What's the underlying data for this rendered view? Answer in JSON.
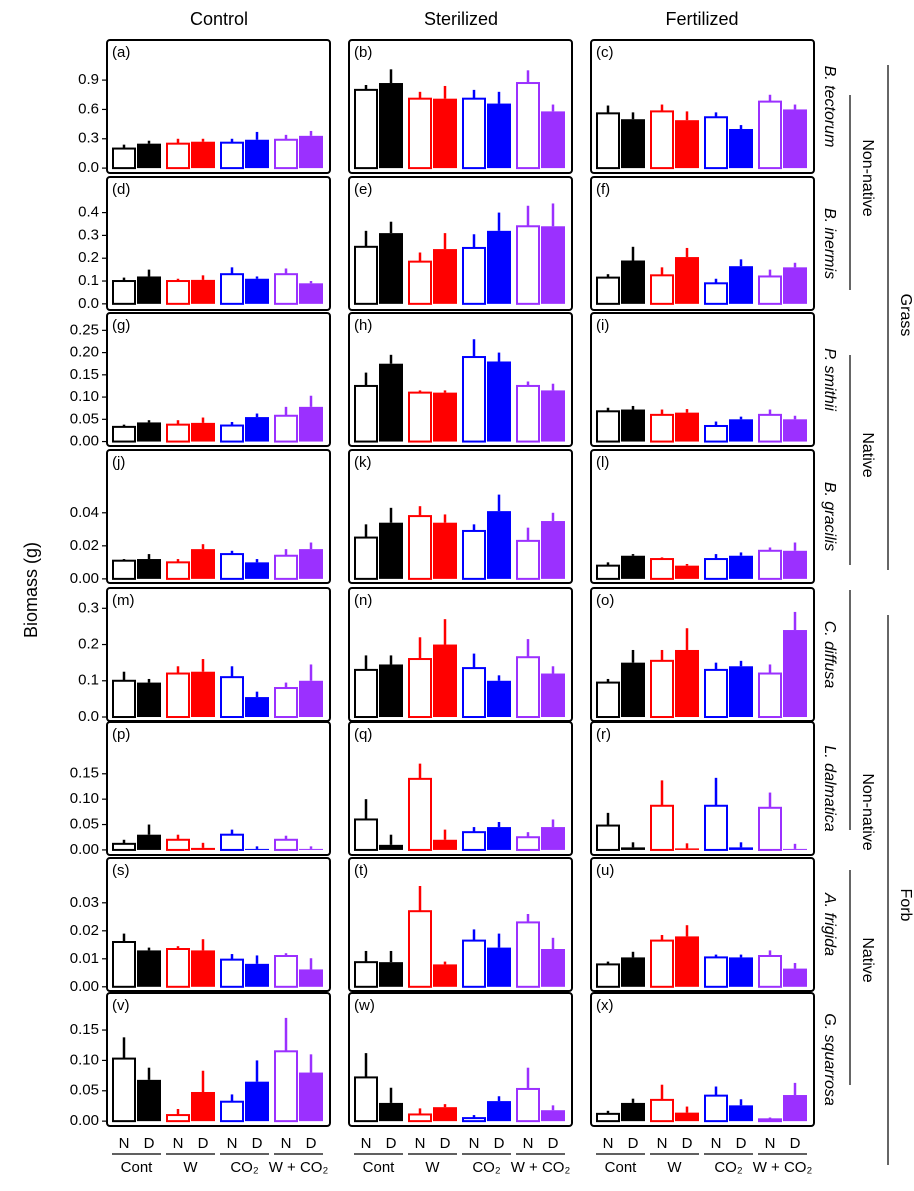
{
  "y_label": "Biomass (g)",
  "columns": [
    "Control",
    "Sterilized",
    "Fertilized"
  ],
  "levels": [
    "N",
    "D"
  ],
  "treatments": [
    {
      "name": "Cont",
      "color": "#000000"
    },
    {
      "name": "W",
      "color": "#ff0000"
    },
    {
      "name": "CO₂",
      "color": "#0000ff"
    },
    {
      "name": "W + CO₂",
      "color": "#9b30ff"
    }
  ],
  "groups": [
    {
      "label": "Grass",
      "subgroups": [
        {
          "label": "Non-native"
        },
        {
          "label": "Native"
        }
      ]
    },
    {
      "label": "Forb",
      "subgroups": [
        {
          "label": "Non-native"
        },
        {
          "label": "Native"
        }
      ]
    }
  ],
  "chart_data": [
    {
      "type": "bar",
      "label": "(a)",
      "ylim": [
        -0.05,
        1.31
      ],
      "yticks": [
        {
          "value": 0,
          "label": "0.0"
        },
        0.3,
        0.6,
        0.9
      ],
      "values": [
        0.2,
        0.25,
        0.25,
        0.27,
        0.26,
        0.29,
        0.29,
        0.33
      ],
      "errors": [
        0.04,
        0.03,
        0.05,
        0.03,
        0.04,
        0.08,
        0.05,
        0.05
      ]
    },
    {
      "type": "bar",
      "label": "(b)",
      "ylim": [
        -0.05,
        1.31
      ],
      "values": [
        0.8,
        0.87,
        0.71,
        0.71,
        0.71,
        0.66,
        0.87,
        0.58
      ],
      "errors": [
        0.05,
        0.14,
        0.07,
        0.13,
        0.09,
        0.12,
        0.13,
        0.07
      ]
    },
    {
      "type": "bar",
      "label": "(c)",
      "ylim": [
        -0.05,
        1.31
      ],
      "species": "B. tectorum",
      "values": [
        0.56,
        0.5,
        0.58,
        0.49,
        0.52,
        0.4,
        0.68,
        0.6
      ],
      "errors": [
        0.08,
        0.07,
        0.07,
        0.09,
        0.05,
        0.04,
        0.07,
        0.05
      ]
    },
    {
      "type": "bar",
      "label": "(d)",
      "ylim": [
        -0.027,
        0.556
      ],
      "yticks": [
        {
          "value": 0,
          "label": "0.0"
        },
        0.1,
        0.2,
        0.3,
        0.4
      ],
      "values": [
        0.1,
        0.12,
        0.1,
        0.105,
        0.13,
        0.11,
        0.13,
        0.09
      ],
      "errors": [
        0.015,
        0.03,
        0.01,
        0.02,
        0.03,
        0.01,
        0.025,
        0.01
      ]
    },
    {
      "type": "bar",
      "label": "(e)",
      "ylim": [
        -0.027,
        0.556
      ],
      "values": [
        0.25,
        0.31,
        0.185,
        0.24,
        0.245,
        0.32,
        0.34,
        0.34
      ],
      "errors": [
        0.07,
        0.05,
        0.04,
        0.07,
        0.06,
        0.08,
        0.09,
        0.1
      ]
    },
    {
      "type": "bar",
      "label": "(f)",
      "ylim": [
        -0.027,
        0.556
      ],
      "species": "B. inermis",
      "values": [
        0.115,
        0.19,
        0.125,
        0.205,
        0.09,
        0.165,
        0.12,
        0.16
      ],
      "errors": [
        0.015,
        0.06,
        0.035,
        0.04,
        0.02,
        0.03,
        0.03,
        0.02
      ]
    },
    {
      "type": "bar",
      "label": "(g)",
      "ylim": [
        -0.01,
        0.289
      ],
      "yticks": [
        {
          "value": 0,
          "label": "0.00"
        },
        0.05,
        {
          "value": 0.1,
          "label": "0.10"
        },
        0.15,
        {
          "value": 0.2,
          "label": "0.20"
        },
        0.25
      ],
      "values": [
        0.033,
        0.043,
        0.038,
        0.042,
        0.036,
        0.055,
        0.058,
        0.078
      ],
      "errors": [
        0.005,
        0.005,
        0.01,
        0.012,
        0.008,
        0.008,
        0.02,
        0.025
      ]
    },
    {
      "type": "bar",
      "label": "(h)",
      "ylim": [
        -0.01,
        0.289
      ],
      "values": [
        0.125,
        0.175,
        0.11,
        0.11,
        0.19,
        0.18,
        0.125,
        0.115
      ],
      "errors": [
        0.03,
        0.02,
        0.005,
        0.005,
        0.04,
        0.02,
        0.01,
        0.015
      ]
    },
    {
      "type": "bar",
      "label": "(i)",
      "ylim": [
        -0.01,
        0.289
      ],
      "species": "P. smithii",
      "values": [
        0.068,
        0.072,
        0.06,
        0.065,
        0.035,
        0.05,
        0.06,
        0.05
      ],
      "errors": [
        0.008,
        0.008,
        0.012,
        0.008,
        0.01,
        0.006,
        0.012,
        0.008
      ]
    },
    {
      "type": "bar",
      "label": "(j)",
      "ylim": [
        -0.0025,
        0.078
      ],
      "yticks": [
        {
          "value": 0,
          "label": "0.00"
        },
        0.02,
        0.04
      ],
      "values": [
        0.011,
        0.012,
        0.01,
        0.018,
        0.015,
        0.01,
        0.014,
        0.018
      ],
      "errors": [
        0.001,
        0.003,
        0.002,
        0.003,
        0.002,
        0.002,
        0.004,
        0.004
      ]
    },
    {
      "type": "bar",
      "label": "(k)",
      "ylim": [
        -0.0025,
        0.078
      ],
      "values": [
        0.025,
        0.034,
        0.038,
        0.034,
        0.029,
        0.041,
        0.023,
        0.035
      ],
      "errors": [
        0.008,
        0.009,
        0.006,
        0.005,
        0.004,
        0.01,
        0.008,
        0.005
      ]
    },
    {
      "type": "bar",
      "label": "(l)",
      "ylim": [
        -0.0025,
        0.078
      ],
      "species": "B. gracilis",
      "values": [
        0.008,
        0.014,
        0.012,
        0.008,
        0.012,
        0.014,
        0.017,
        0.017
      ],
      "errors": [
        0.002,
        0.001,
        0.001,
        0.001,
        0.003,
        0.002,
        0.002,
        0.005
      ]
    },
    {
      "type": "bar",
      "label": "(m)",
      "ylim": [
        -0.011,
        0.356
      ],
      "yticks": [
        {
          "value": 0,
          "label": "0.0"
        },
        0.1,
        0.2,
        0.3
      ],
      "values": [
        0.1,
        0.095,
        0.12,
        0.125,
        0.11,
        0.055,
        0.08,
        0.1
      ],
      "errors": [
        0.025,
        0.01,
        0.02,
        0.035,
        0.03,
        0.015,
        0.015,
        0.045
      ]
    },
    {
      "type": "bar",
      "label": "(n)",
      "ylim": [
        -0.011,
        0.356
      ],
      "values": [
        0.13,
        0.145,
        0.16,
        0.2,
        0.135,
        0.1,
        0.165,
        0.12
      ],
      "errors": [
        0.04,
        0.025,
        0.06,
        0.07,
        0.04,
        0.015,
        0.05,
        0.02
      ]
    },
    {
      "type": "bar",
      "label": "(o)",
      "ylim": [
        -0.011,
        0.356
      ],
      "species": "C. diffusa",
      "values": [
        0.095,
        0.15,
        0.155,
        0.185,
        0.13,
        0.14,
        0.12,
        0.24
      ],
      "errors": [
        0.01,
        0.035,
        0.03,
        0.06,
        0.02,
        0.015,
        0.025,
        0.05
      ]
    },
    {
      "type": "bar",
      "label": "(p)",
      "ylim": [
        -0.01,
        0.252
      ],
      "yticks": [
        {
          "value": 0,
          "label": "0.00"
        },
        0.05,
        {
          "value": 0.1,
          "label": "0.10"
        },
        0.15
      ],
      "values": [
        0.012,
        0.03,
        0.02,
        0.004,
        0.03,
        0.002,
        0.02,
        0.002
      ],
      "errors": [
        0.008,
        0.02,
        0.01,
        0.01,
        0.01,
        0.005,
        0.008,
        0.005
      ]
    },
    {
      "type": "bar",
      "label": "(q)",
      "ylim": [
        -0.01,
        0.252
      ],
      "values": [
        0.06,
        0.01,
        0.14,
        0.02,
        0.035,
        0.045,
        0.025,
        0.045
      ],
      "errors": [
        0.04,
        0.02,
        0.03,
        0.02,
        0.01,
        0.01,
        0.01,
        0.015
      ]
    },
    {
      "type": "bar",
      "label": "(r)",
      "ylim": [
        -0.01,
        0.252
      ],
      "species": "L. dalmatica",
      "values": [
        0.048,
        0.005,
        0.087,
        0.003,
        0.087,
        0.005,
        0.083,
        0.002
      ],
      "errors": [
        0.025,
        0.01,
        0.05,
        0.01,
        0.055,
        0.01,
        0.03,
        0.01
      ]
    },
    {
      "type": "bar",
      "label": "(s)",
      "ylim": [
        -0.0015,
        0.046
      ],
      "yticks": [
        {
          "value": 0,
          "label": "0.00"
        },
        0.01,
        0.02,
        0.03
      ],
      "values": [
        0.016,
        0.013,
        0.0135,
        0.013,
        0.0097,
        0.0082,
        0.011,
        0.0062
      ],
      "errors": [
        0.003,
        0.001,
        0.001,
        0.004,
        0.002,
        0.003,
        0.001,
        0.004
      ]
    },
    {
      "type": "bar",
      "label": "(t)",
      "ylim": [
        -0.0015,
        0.046
      ],
      "values": [
        0.0088,
        0.0088,
        0.027,
        0.008,
        0.0165,
        0.014,
        0.023,
        0.0135
      ],
      "errors": [
        0.004,
        0.004,
        0.009,
        0.001,
        0.004,
        0.005,
        0.003,
        0.004
      ]
    },
    {
      "type": "bar",
      "label": "(u)",
      "ylim": [
        -0.0015,
        0.046
      ],
      "species": "A. frigida",
      "values": [
        0.008,
        0.0105,
        0.0165,
        0.018,
        0.0105,
        0.0105,
        0.011,
        0.0065
      ],
      "errors": [
        0.001,
        0.002,
        0.002,
        0.004,
        0.001,
        0.001,
        0.002,
        0.002
      ]
    },
    {
      "type": "bar",
      "label": "(v)",
      "ylim": [
        -0.008,
        0.211
      ],
      "yticks": [
        {
          "value": 0,
          "label": "0.00"
        },
        0.05,
        {
          "value": 0.1,
          "label": "0.10"
        },
        0.15
      ],
      "values": [
        0.103,
        0.068,
        0.01,
        0.048,
        0.032,
        0.065,
        0.115,
        0.08
      ],
      "errors": [
        0.035,
        0.02,
        0.01,
        0.035,
        0.012,
        0.035,
        0.055,
        0.03
      ]
    },
    {
      "type": "bar",
      "label": "(w)",
      "ylim": [
        -0.008,
        0.211
      ],
      "values": [
        0.072,
        0.03,
        0.011,
        0.023,
        0.005,
        0.033,
        0.053,
        0.018
      ],
      "errors": [
        0.04,
        0.025,
        0.01,
        0.005,
        0.005,
        0.008,
        0.035,
        0.008
      ]
    },
    {
      "type": "bar",
      "label": "(x)",
      "ylim": [
        -0.008,
        0.211
      ],
      "species": "G. squarrosa",
      "values": [
        0.012,
        0.03,
        0.035,
        0.014,
        0.042,
        0.026,
        0.003,
        0.043
      ],
      "errors": [
        0.005,
        0.007,
        0.025,
        0.01,
        0.015,
        0.01,
        0.003,
        0.02
      ]
    }
  ]
}
